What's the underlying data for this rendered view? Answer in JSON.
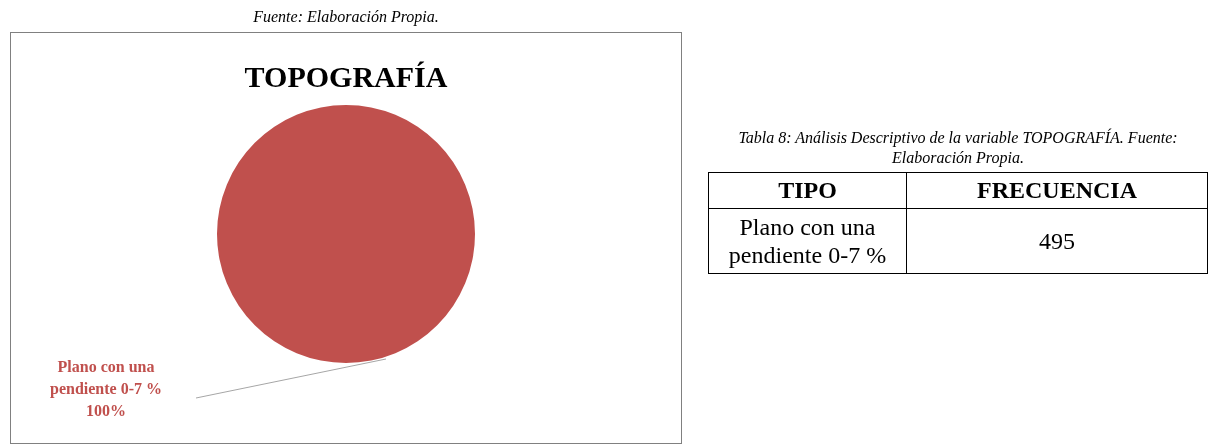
{
  "chart_data": [
    {
      "type": "pie",
      "title": "TOPOGRAFÍA",
      "categories": [
        "Plano con una pendiente 0-7 %"
      ],
      "values": [
        100
      ],
      "colors": [
        "#c0504d"
      ],
      "value_labels": [
        "100%"
      ],
      "annotations": [
        "Fuente: Elaboración Propia."
      ]
    },
    {
      "type": "other",
      "title": "Tabla 8: Análisis Descriptivo de la variable TOPOGRAFÍA. Fuente: Elaboración Propia.",
      "annotations": [
        "TIPO",
        "FRECUENCIA"
      ],
      "categories": [
        "Plano con una pendiente 0-7 %"
      ],
      "values": [
        495
      ],
      "data_labels": true
    }
  ]
}
